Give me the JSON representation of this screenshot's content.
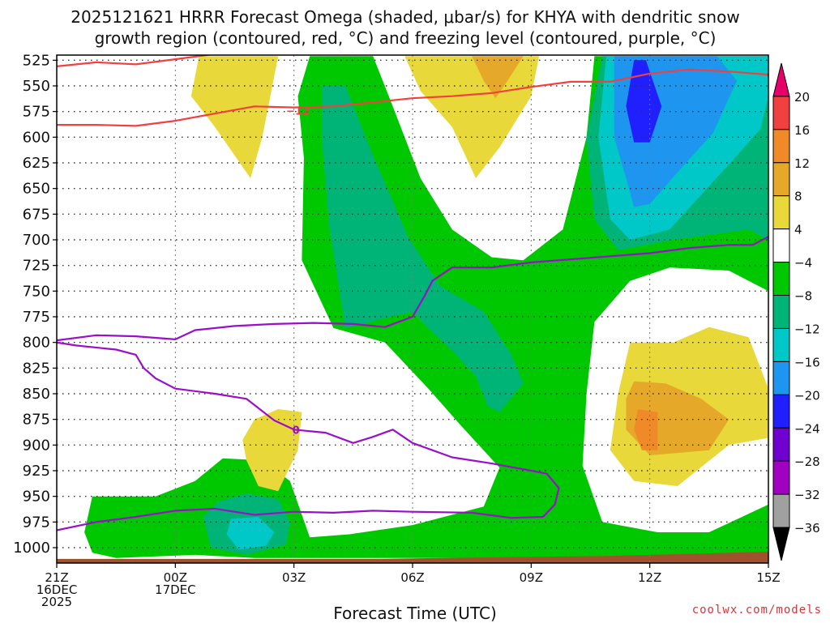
{
  "chart_data": {
    "type": "heatmap",
    "title_line1": "2025121621 HRRR Forecast Omega (shaded, μbar/s) for KHYA with dendritic snow",
    "title_line2": "growth region (contoured, red, °C) and freezing level (contoured, purple, °C)",
    "xlabel": "Forecast Time (UTC)",
    "credit": "coolwx.com/models",
    "xlim": [
      0,
      18
    ],
    "ylim": [
      1015,
      520
    ],
    "y_ticks": [
      "525",
      "550",
      "575",
      "600",
      "625",
      "650",
      "675",
      "700",
      "725",
      "750",
      "775",
      "800",
      "825",
      "850",
      "875",
      "900",
      "925",
      "950",
      "975",
      "1000"
    ],
    "y_tick_values": [
      525,
      550,
      575,
      600,
      625,
      650,
      675,
      700,
      725,
      750,
      775,
      800,
      825,
      850,
      875,
      900,
      925,
      950,
      975,
      1000
    ],
    "x_ticks": [
      {
        "hour": 0,
        "line1": "21Z",
        "line2": "16DEC",
        "line3": "2025"
      },
      {
        "hour": 3,
        "line1": "00Z",
        "line2": "17DEC",
        "line3": ""
      },
      {
        "hour": 6,
        "line1": "03Z",
        "line2": "",
        "line3": ""
      },
      {
        "hour": 9,
        "line1": "06Z",
        "line2": "",
        "line3": ""
      },
      {
        "hour": 12,
        "line1": "09Z",
        "line2": "",
        "line3": ""
      },
      {
        "hour": 15,
        "line1": "12Z",
        "line2": "",
        "line3": ""
      },
      {
        "hour": 18,
        "line1": "15Z",
        "line2": "",
        "line3": ""
      }
    ],
    "colorbar": {
      "labels": [
        "20",
        "16",
        "12",
        "8",
        "4",
        "−4",
        "−8",
        "−12",
        "−16",
        "−20",
        "−24",
        "−28",
        "−32",
        "−36"
      ],
      "colors": [
        "#e8006a",
        "#f04040",
        "#f08a28",
        "#e6a828",
        "#e8d83a",
        "#ffffff",
        "#00c800",
        "#00b478",
        "#00c8c8",
        "#1e96f0",
        "#2020ff",
        "#7000d0",
        "#a000c0",
        "#a0a0a0",
        "#000000"
      ]
    },
    "shading": [
      {
        "name": "green-band",
        "color": "#00c800",
        "pts": [
          [
            6.4,
            521
          ],
          [
            8.0,
            521
          ],
          [
            8.4,
            560
          ],
          [
            9.2,
            640
          ],
          [
            10.0,
            690
          ],
          [
            11.0,
            717
          ],
          [
            11.8,
            720
          ],
          [
            12.8,
            690
          ],
          [
            13.4,
            600
          ],
          [
            13.6,
            521
          ],
          [
            18,
            521
          ],
          [
            18,
            750
          ],
          [
            17,
            730
          ],
          [
            15.5,
            727
          ],
          [
            14.5,
            740
          ],
          [
            13.6,
            780
          ],
          [
            13.4,
            850
          ],
          [
            13.3,
            920
          ],
          [
            13.8,
            975
          ],
          [
            15.2,
            985
          ],
          [
            16.5,
            985
          ],
          [
            18,
            958
          ],
          [
            18,
            1010
          ],
          [
            8,
            1010
          ],
          [
            5,
            1010
          ],
          [
            3.5,
            1007
          ],
          [
            1.5,
            1010
          ],
          [
            0.9,
            1005
          ],
          [
            0.7,
            985
          ],
          [
            0.9,
            950
          ],
          [
            2.5,
            950
          ],
          [
            3.5,
            935
          ],
          [
            4.2,
            913
          ],
          [
            5.2,
            915
          ],
          [
            5.9,
            935
          ],
          [
            6.4,
            990
          ],
          [
            7.4,
            987
          ],
          [
            9.0,
            978
          ],
          [
            10.8,
            960
          ],
          [
            11.2,
            922
          ],
          [
            10.2,
            880
          ],
          [
            9.4,
            845
          ],
          [
            8.3,
            800
          ],
          [
            7.0,
            786
          ],
          [
            6.2,
            720
          ],
          [
            6.25,
            620
          ],
          [
            6.1,
            560
          ]
        ]
      },
      {
        "name": "teal-band",
        "color": "#00b478",
        "pts": [
          [
            6.7,
            550
          ],
          [
            7.3,
            550
          ],
          [
            8.0,
            618
          ],
          [
            8.9,
            698
          ],
          [
            9.7,
            745
          ],
          [
            10.8,
            770
          ],
          [
            11.5,
            812
          ],
          [
            11.8,
            840
          ],
          [
            11.2,
            868
          ],
          [
            10.9,
            862
          ],
          [
            10.6,
            833
          ],
          [
            10.0,
            808
          ],
          [
            9.4,
            786
          ],
          [
            9.0,
            770
          ],
          [
            7.3,
            786
          ],
          [
            6.9,
            690
          ],
          [
            6.7,
            600
          ]
        ]
      },
      {
        "name": "teal-band",
        "color": "#00b478",
        "pts": [
          [
            4.1,
            955
          ],
          [
            4.8,
            947
          ],
          [
            5.6,
            953
          ],
          [
            5.9,
            975
          ],
          [
            5.8,
            997
          ],
          [
            4.8,
            1007
          ],
          [
            3.9,
            1000
          ],
          [
            3.7,
            970
          ]
        ]
      },
      {
        "name": "cyan-band",
        "color": "#00c8c8",
        "pts": [
          [
            4.4,
            972
          ],
          [
            5.1,
            970
          ],
          [
            5.5,
            985
          ],
          [
            5.3,
            998
          ],
          [
            4.6,
            1002
          ],
          [
            4.3,
            987
          ]
        ]
      },
      {
        "name": "teal-band",
        "color": "#00b478",
        "pts": [
          [
            13.8,
            521
          ],
          [
            18,
            521
          ],
          [
            18,
            700
          ],
          [
            17.5,
            690
          ],
          [
            15.6,
            700
          ],
          [
            14.2,
            710
          ],
          [
            13.6,
            680
          ],
          [
            13.4,
            600
          ]
        ]
      },
      {
        "name": "cyan-band",
        "color": "#00c8c8",
        "pts": [
          [
            13.9,
            521
          ],
          [
            18,
            521
          ],
          [
            18,
            560
          ],
          [
            17.8,
            592
          ],
          [
            17.2,
            618
          ],
          [
            15.5,
            690
          ],
          [
            14.5,
            700
          ],
          [
            14.0,
            680
          ],
          [
            13.7,
            600
          ]
        ]
      },
      {
        "name": "blue-band",
        "color": "#1e96f0",
        "pts": [
          [
            14.1,
            521
          ],
          [
            16.7,
            521
          ],
          [
            17.2,
            545
          ],
          [
            16.6,
            596
          ],
          [
            15.8,
            630
          ],
          [
            15.0,
            665
          ],
          [
            14.6,
            668
          ],
          [
            14.4,
            640
          ],
          [
            14.1,
            600
          ]
        ]
      },
      {
        "name": "navy-band",
        "color": "#2020ff",
        "pts": [
          [
            14.6,
            525
          ],
          [
            14.9,
            525
          ],
          [
            15.3,
            570
          ],
          [
            15.0,
            605
          ],
          [
            14.6,
            605
          ],
          [
            14.4,
            570
          ]
        ]
      },
      {
        "name": "yellow-band",
        "color": "#e8d83a",
        "pts": [
          [
            3.6,
            521
          ],
          [
            5.6,
            521
          ],
          [
            5.2,
            600
          ],
          [
            4.9,
            640
          ],
          [
            4.0,
            590
          ],
          [
            3.4,
            560
          ]
        ]
      },
      {
        "name": "yellow-band",
        "color": "#e8d83a",
        "pts": [
          [
            8.8,
            521
          ],
          [
            12.2,
            521
          ],
          [
            12.0,
            560
          ],
          [
            11.2,
            610
          ],
          [
            10.6,
            640
          ],
          [
            10.0,
            590
          ],
          [
            9.2,
            555
          ]
        ]
      },
      {
        "name": "orange-band",
        "color": "#e6a828",
        "pts": [
          [
            10.5,
            521
          ],
          [
            11.8,
            521
          ],
          [
            11.4,
            545
          ],
          [
            11.1,
            562
          ],
          [
            10.8,
            545
          ]
        ]
      },
      {
        "name": "yellow-band",
        "color": "#e8d83a",
        "pts": [
          [
            5.0,
            875
          ],
          [
            5.6,
            865
          ],
          [
            6.2,
            868
          ],
          [
            6.1,
            905
          ],
          [
            5.6,
            945
          ],
          [
            5.1,
            940
          ],
          [
            4.8,
            915
          ],
          [
            4.7,
            895
          ]
        ]
      },
      {
        "name": "yellow-band",
        "color": "#e8d83a",
        "pts": [
          [
            14.5,
            800
          ],
          [
            15.6,
            800
          ],
          [
            16.5,
            785
          ],
          [
            17.5,
            795
          ],
          [
            18,
            845
          ],
          [
            18,
            893
          ],
          [
            17,
            900
          ],
          [
            15.7,
            940
          ],
          [
            14.6,
            935
          ],
          [
            14.0,
            905
          ],
          [
            14.2,
            850
          ]
        ]
      },
      {
        "name": "orange-band",
        "color": "#e6a828",
        "pts": [
          [
            14.6,
            838
          ],
          [
            15.4,
            840
          ],
          [
            16.3,
            855
          ],
          [
            17.0,
            875
          ],
          [
            16.5,
            905
          ],
          [
            15.0,
            910
          ],
          [
            14.4,
            885
          ],
          [
            14.4,
            855
          ]
        ]
      },
      {
        "name": "dark-orange-band",
        "color": "#f08a28",
        "pts": [
          [
            14.7,
            865
          ],
          [
            15.2,
            868
          ],
          [
            15.2,
            905
          ],
          [
            14.8,
            905
          ],
          [
            14.6,
            885
          ]
        ]
      }
    ],
    "ground_top": [
      [
        0,
        1011
      ],
      [
        8,
        1011
      ],
      [
        14,
        1008
      ],
      [
        18,
        1004
      ]
    ],
    "red_lines": [
      {
        "label": "−12",
        "label_at": [
          6.1,
          574
        ],
        "pts": [
          [
            0,
            531
          ],
          [
            1.0,
            527
          ],
          [
            2.0,
            529
          ],
          [
            3.0,
            524
          ],
          [
            4.0,
            519
          ]
        ]
      },
      {
        "label": "",
        "pts": [
          [
            0,
            588
          ],
          [
            1.0,
            588
          ],
          [
            2.0,
            589
          ],
          [
            3.0,
            584
          ],
          [
            4.0,
            577
          ],
          [
            5.0,
            570
          ],
          [
            6.0,
            571
          ],
          [
            7.0,
            570
          ],
          [
            8.0,
            566
          ],
          [
            9.0,
            562
          ],
          [
            10.0,
            560
          ],
          [
            11.0,
            557
          ],
          [
            12.0,
            551
          ],
          [
            13.0,
            546
          ],
          [
            14.0,
            546
          ],
          [
            15.0,
            538
          ],
          [
            16.0,
            534
          ],
          [
            17.0,
            536
          ],
          [
            18,
            539
          ]
        ]
      }
    ],
    "purple_lines": [
      {
        "label": "",
        "pts": [
          [
            0,
            798
          ],
          [
            1.0,
            793
          ],
          [
            2.0,
            794
          ],
          [
            3.0,
            797
          ],
          [
            3.5,
            788
          ],
          [
            4.5,
            784
          ],
          [
            5.5,
            782
          ],
          [
            6.5,
            781
          ],
          [
            7.5,
            782
          ],
          [
            8.3,
            785
          ],
          [
            9.0,
            775
          ],
          [
            9.3,
            755
          ],
          [
            9.5,
            740
          ],
          [
            10.0,
            727
          ],
          [
            11.0,
            727
          ],
          [
            12.0,
            722
          ],
          [
            13.0,
            719
          ],
          [
            14.0,
            716
          ],
          [
            15.0,
            713
          ],
          [
            16.0,
            708
          ],
          [
            17.0,
            705
          ],
          [
            17.6,
            705
          ],
          [
            18,
            697
          ]
        ]
      },
      {
        "label": "0",
        "label_at": [
          6.05,
          885
        ],
        "pts": [
          [
            0,
            800
          ],
          [
            0.5,
            803
          ],
          [
            1.5,
            807
          ],
          [
            2.0,
            812
          ],
          [
            2.2,
            825
          ],
          [
            2.5,
            835
          ],
          [
            3.0,
            845
          ],
          [
            4.0,
            850
          ],
          [
            4.8,
            855
          ],
          [
            5.5,
            876
          ],
          [
            6.0,
            885
          ],
          [
            6.8,
            888
          ],
          [
            7.5,
            898
          ],
          [
            8.0,
            892
          ],
          [
            8.5,
            885
          ],
          [
            9.0,
            898
          ],
          [
            10.0,
            912
          ],
          [
            11.0,
            918
          ],
          [
            12.0,
            925
          ],
          [
            12.4,
            928
          ],
          [
            12.7,
            942
          ],
          [
            12.6,
            958
          ],
          [
            12.3,
            970
          ],
          [
            11.5,
            971
          ],
          [
            10.5,
            966
          ],
          [
            9.0,
            965
          ],
          [
            8.0,
            964
          ],
          [
            7.0,
            966
          ],
          [
            6.0,
            965
          ],
          [
            5.0,
            968
          ],
          [
            4.0,
            962
          ],
          [
            3.0,
            964
          ],
          [
            2.0,
            970
          ],
          [
            1.0,
            975
          ],
          [
            0,
            983
          ]
        ]
      }
    ]
  }
}
